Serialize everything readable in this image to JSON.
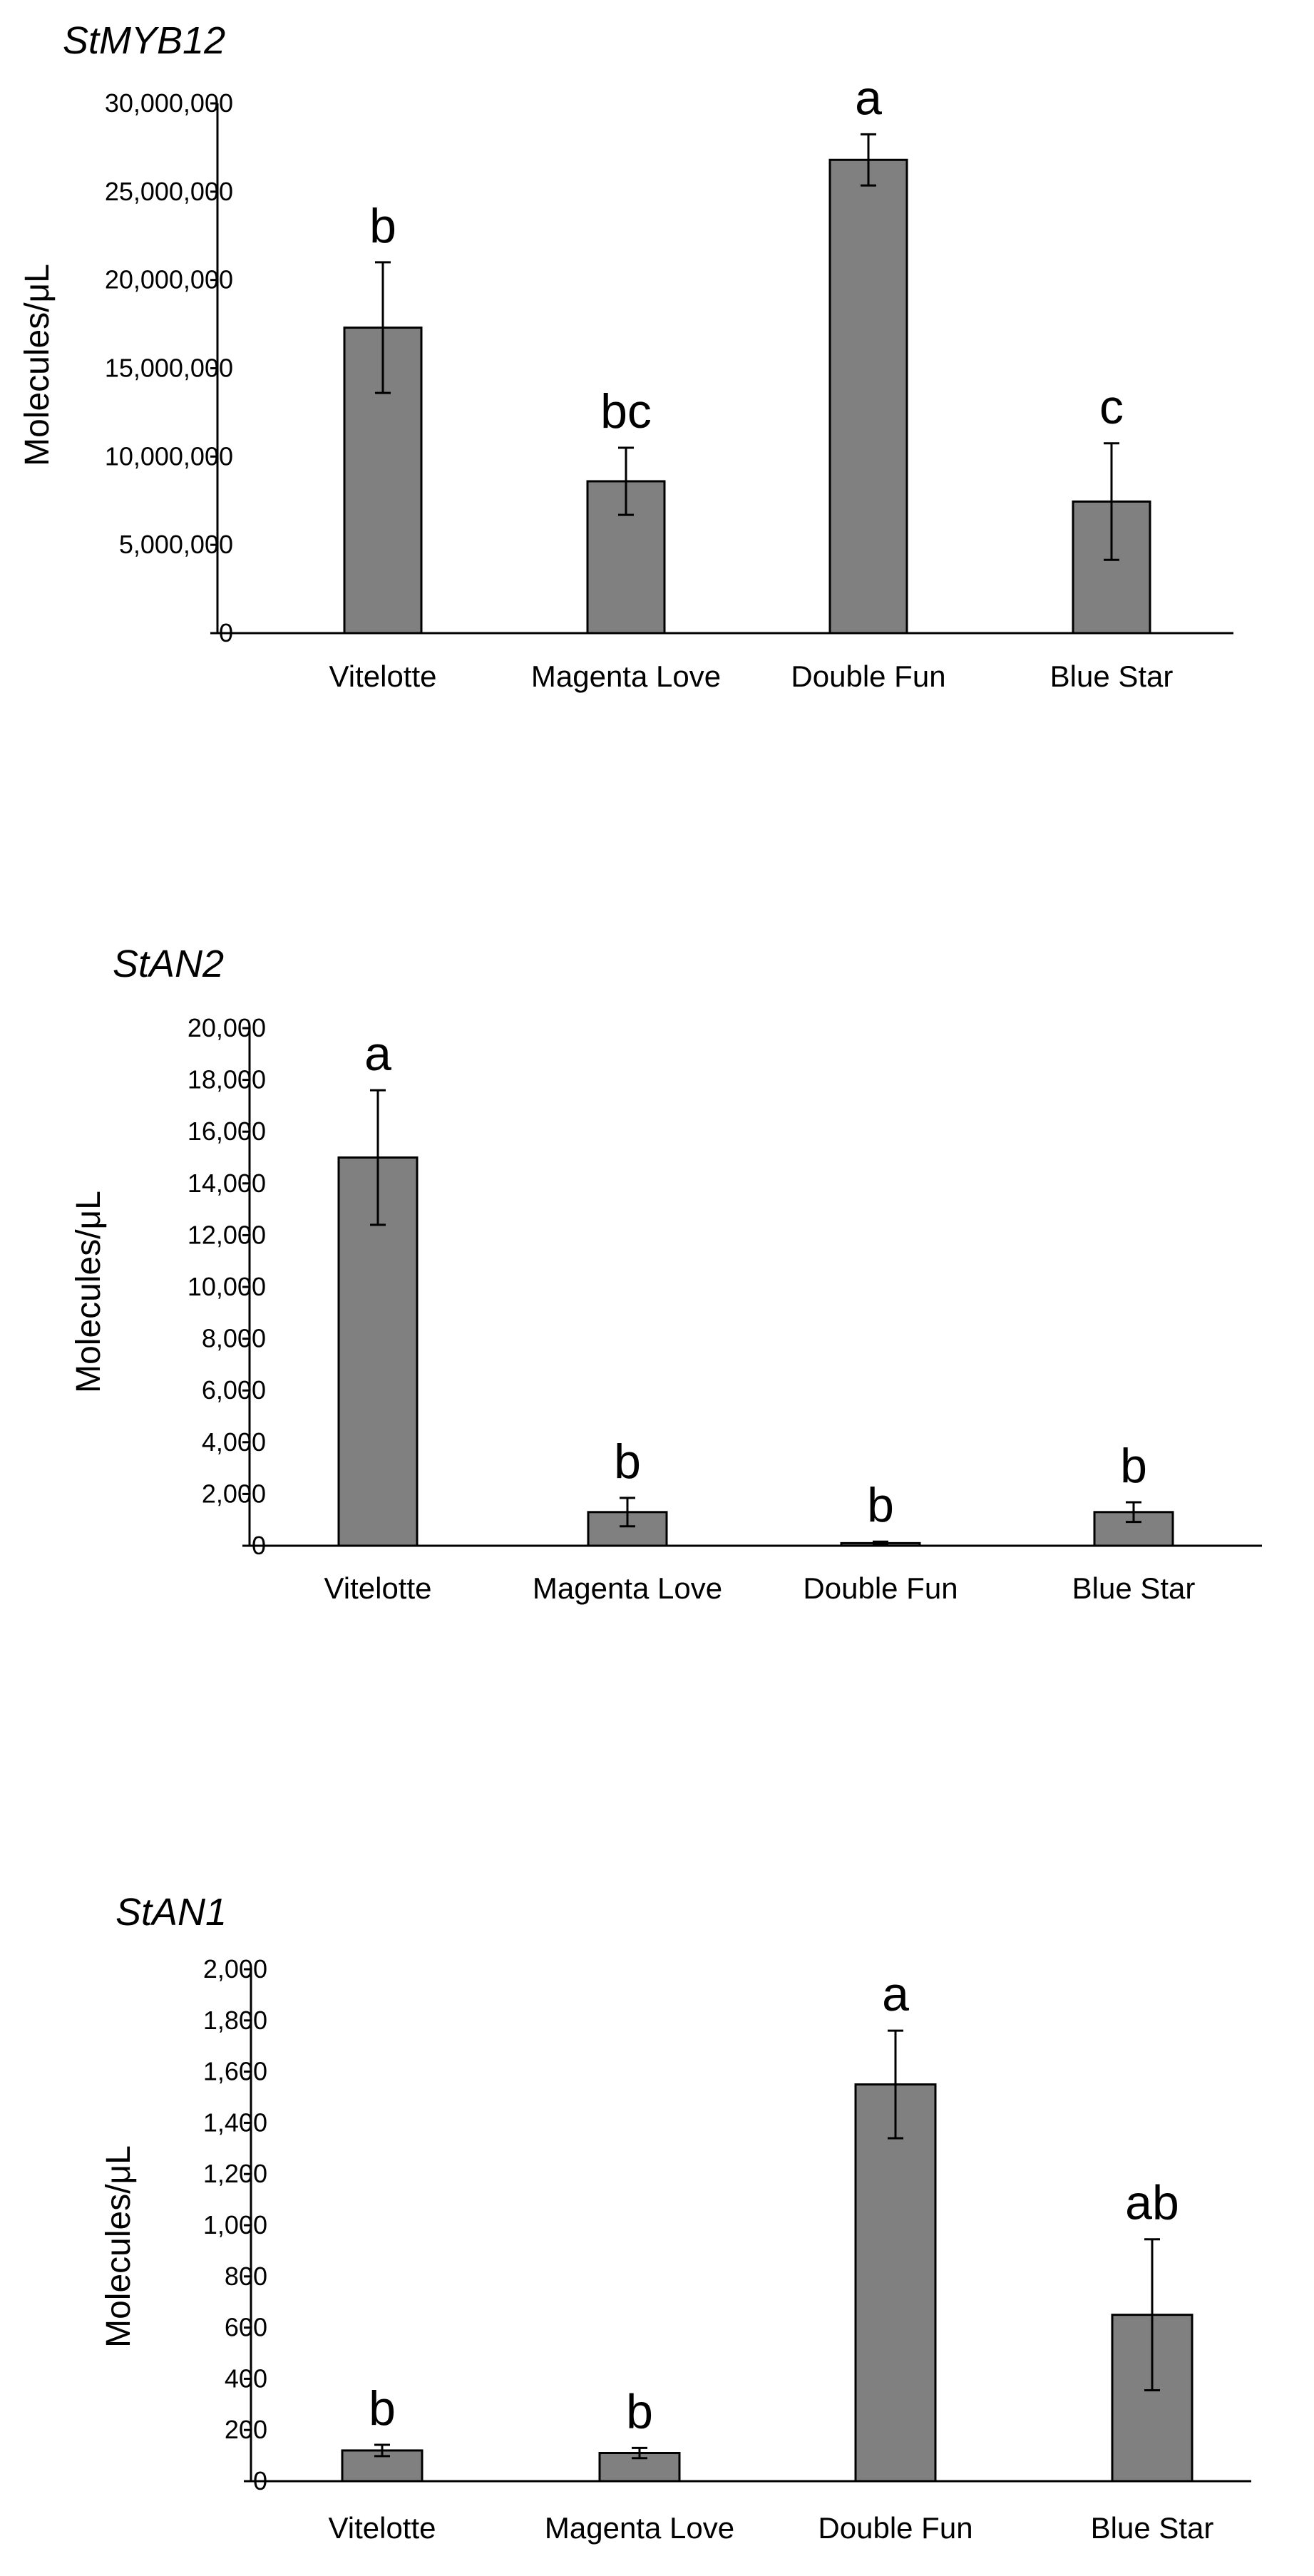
{
  "chart_data": [
    {
      "type": "bar",
      "title": "StMYB12",
      "ylabel": "Molecules/μL",
      "categories": [
        "Vitelotte",
        "Magenta Love",
        "Double Fun",
        "Blue Star"
      ],
      "values": [
        17300000,
        8600000,
        26800000,
        7450000
      ],
      "errors": [
        3700000,
        1900000,
        1450000,
        3300000
      ],
      "labels": [
        "b",
        "bc",
        "a",
        "c"
      ],
      "ylim": [
        0,
        30000000
      ],
      "yticks": [
        0,
        5000000,
        10000000,
        15000000,
        20000000,
        25000000,
        30000000
      ],
      "ytick_labels": [
        "0",
        "5,000,000",
        "10,000,000",
        "15,000,000",
        "20,000,000",
        "25,000,000",
        "30,000,000"
      ],
      "bar_color": "#808080",
      "grid": false
    },
    {
      "type": "bar",
      "title": "StAN2",
      "ylabel": "Molecules/μL",
      "categories": [
        "Vitelotte",
        "Magenta Love",
        "Double Fun",
        "Blue Star"
      ],
      "values": [
        15000,
        1300,
        100,
        1300
      ],
      "errors": [
        2600,
        550,
        60,
        380
      ],
      "labels": [
        "a",
        "b",
        "b",
        "b"
      ],
      "ylim": [
        0,
        20000
      ],
      "yticks": [
        0,
        2000,
        4000,
        6000,
        8000,
        10000,
        12000,
        14000,
        16000,
        18000,
        20000
      ],
      "ytick_labels": [
        "0",
        "2,000",
        "4,000",
        "6,000",
        "8,000",
        "10,000",
        "12,000",
        "14,000",
        "16,000",
        "18,000",
        "20,000"
      ],
      "bar_color": "#808080",
      "grid": false
    },
    {
      "type": "bar",
      "title": "StAN1",
      "ylabel": "Molecules/μL",
      "categories": [
        "Vitelotte",
        "Magenta Love",
        "Double Fun",
        "Blue Star"
      ],
      "values": [
        120,
        110,
        1550,
        650
      ],
      "errors": [
        22,
        20,
        210,
        295
      ],
      "labels": [
        "b",
        "b",
        "a",
        "ab"
      ],
      "ylim": [
        0,
        2000
      ],
      "yticks": [
        0,
        200,
        400,
        600,
        800,
        1000,
        1200,
        1400,
        1600,
        1800,
        2000
      ],
      "ytick_labels": [
        "0",
        "200",
        "400",
        "600",
        "800",
        "1,000",
        "1,200",
        "1,400",
        "1,600",
        "1,800",
        "2,000"
      ],
      "bar_color": "#808080",
      "grid": false
    }
  ]
}
